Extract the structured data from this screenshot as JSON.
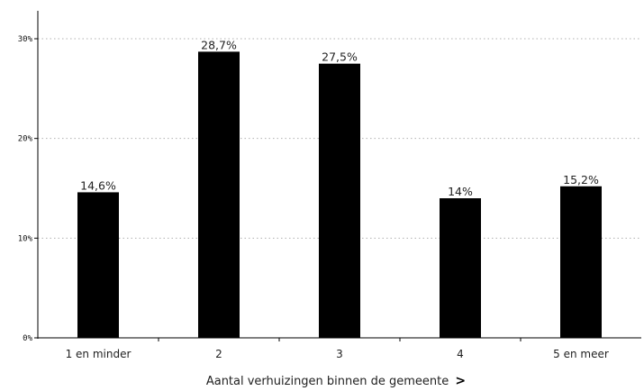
{
  "chart_data": {
    "type": "bar",
    "categories": [
      "1 en minder",
      "2",
      "3",
      "4",
      "5 en meer"
    ],
    "values": [
      14.6,
      28.7,
      27.5,
      14,
      15.2
    ],
    "data_labels": [
      "14,6%",
      "28,7%",
      "27,5%",
      "14%",
      "15,2%"
    ],
    "title": "",
    "xlabel": "Aantal verhuizingen binnen de gemeente",
    "xlabel_arrow": ">",
    "ylabel": "",
    "ylim": [
      0,
      30
    ],
    "yticks": [
      0,
      10,
      20,
      30
    ],
    "ytick_labels": [
      "0%",
      "10%",
      "20%",
      "30%"
    ],
    "grid": true,
    "bar_color": "#000000",
    "grid_color": "#b0b0b0"
  }
}
